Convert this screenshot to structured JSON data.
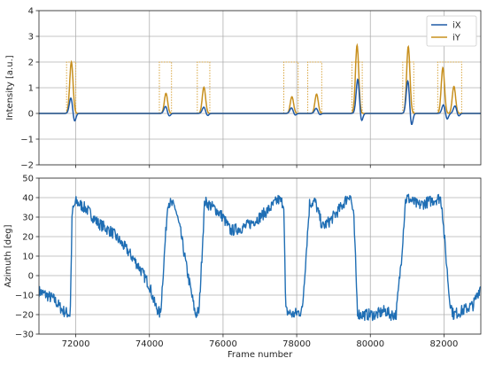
{
  "colors": {
    "background": "#ffffff",
    "grid": "#b0b0b0",
    "series_ix": "#1f5aa6",
    "series_iy": "#c8901e",
    "azimuth": "#1f6eb4",
    "window": "#d9a640",
    "axes": "#262626"
  },
  "chart_data": [
    {
      "type": "line",
      "title": "",
      "xlabel": "",
      "ylabel": "Intensity [a.u.]",
      "xlim": [
        71000,
        83000
      ],
      "ylim": [
        -2,
        4
      ],
      "yticks": [
        -2,
        -1,
        0,
        1,
        2,
        3,
        4
      ],
      "ytick_labels": [
        "−2",
        "−1",
        "0",
        "1",
        "2",
        "3",
        "4"
      ],
      "xticks": [
        72000,
        74000,
        76000,
        78000,
        80000,
        82000
      ],
      "xtick_labels": [],
      "grid": true,
      "legend": "top-right",
      "series": [
        {
          "name": "iX",
          "color": "#1f5aa6",
          "peaks": [
            {
              "x": 71870,
              "amp": 0.62,
              "neg": -0.35
            },
            {
              "x": 74440,
              "amp": 0.28,
              "neg": -0.12
            },
            {
              "x": 75480,
              "amp": 0.25,
              "neg": -0.1
            },
            {
              "x": 77860,
              "amp": 0.22,
              "neg": -0.08
            },
            {
              "x": 78530,
              "amp": 0.2,
              "neg": -0.06
            },
            {
              "x": 79660,
              "amp": 1.35,
              "neg": -0.38
            },
            {
              "x": 81020,
              "amp": 1.3,
              "neg": -0.55
            },
            {
              "x": 81990,
              "amp": 0.35,
              "neg": -0.25
            },
            {
              "x": 82300,
              "amp": 0.3,
              "neg": -0.12
            }
          ]
        },
        {
          "name": "iY",
          "color": "#c8901e",
          "peaks": [
            {
              "x": 71880,
              "amp": 2.0
            },
            {
              "x": 74450,
              "amp": 0.78
            },
            {
              "x": 75480,
              "amp": 1.02
            },
            {
              "x": 77870,
              "amp": 0.65
            },
            {
              "x": 78540,
              "amp": 0.75
            },
            {
              "x": 79640,
              "amp": 2.65
            },
            {
              "x": 81030,
              "amp": 2.6
            },
            {
              "x": 81970,
              "amp": 1.78
            },
            {
              "x": 82270,
              "amp": 1.05
            }
          ]
        }
      ],
      "windows": [
        [
          71750,
          72000
        ],
        [
          74270,
          74600
        ],
        [
          75300,
          75640
        ],
        [
          77650,
          78040
        ],
        [
          78300,
          78680
        ],
        [
          79500,
          79780
        ],
        [
          80880,
          81180
        ],
        [
          81830,
          82480
        ]
      ]
    },
    {
      "type": "line",
      "title": "",
      "xlabel": "Frame number",
      "ylabel": "Azimuth [deg]",
      "xlim": [
        71000,
        83000
      ],
      "ylim": [
        -30,
        50
      ],
      "yticks": [
        -30,
        -20,
        -10,
        0,
        10,
        20,
        30,
        40,
        50
      ],
      "ytick_labels": [
        "−30",
        "−20",
        "−10",
        "0",
        "10",
        "20",
        "30",
        "40",
        "50"
      ],
      "xticks": [
        72000,
        74000,
        76000,
        78000,
        80000,
        82000
      ],
      "xtick_labels": [
        "72000",
        "74000",
        "76000",
        "78000",
        "80000",
        "82000"
      ],
      "grid": true,
      "series": [
        {
          "name": "",
          "color": "#1f6eb4",
          "noise": 3,
          "x": [
            71000,
            71400,
            71650,
            71850,
            71900,
            72000,
            72300,
            72600,
            73000,
            73400,
            73700,
            74000,
            74150,
            74300,
            74500,
            74700,
            74850,
            75000,
            75250,
            75350,
            75500,
            75800,
            76000,
            76200,
            76600,
            77000,
            77300,
            77500,
            77650,
            77700,
            77900,
            78150,
            78350,
            78500,
            78700,
            78900,
            79200,
            79450,
            79550,
            79650,
            79700,
            79900,
            80150,
            80400,
            80550,
            80700,
            80850,
            80950,
            81000,
            81300,
            81600,
            81900,
            81950,
            82000,
            82150,
            82250,
            82500,
            82800,
            83000
          ],
          "y": [
            -8,
            -12,
            -18,
            -20,
            32,
            38,
            34,
            27,
            22,
            13,
            5,
            -5,
            -15,
            -20,
            38,
            35,
            22,
            5,
            -20,
            -18,
            38,
            34,
            30,
            23,
            25,
            30,
            35,
            39,
            37,
            -18,
            -20,
            -18,
            37,
            38,
            25,
            28,
            35,
            42,
            30,
            -18,
            -20,
            -20,
            -20,
            -18,
            -20,
            -20,
            10,
            38,
            40,
            36,
            38,
            40,
            35,
            22,
            -12,
            -20,
            -18,
            -15,
            -5
          ]
        }
      ]
    }
  ]
}
